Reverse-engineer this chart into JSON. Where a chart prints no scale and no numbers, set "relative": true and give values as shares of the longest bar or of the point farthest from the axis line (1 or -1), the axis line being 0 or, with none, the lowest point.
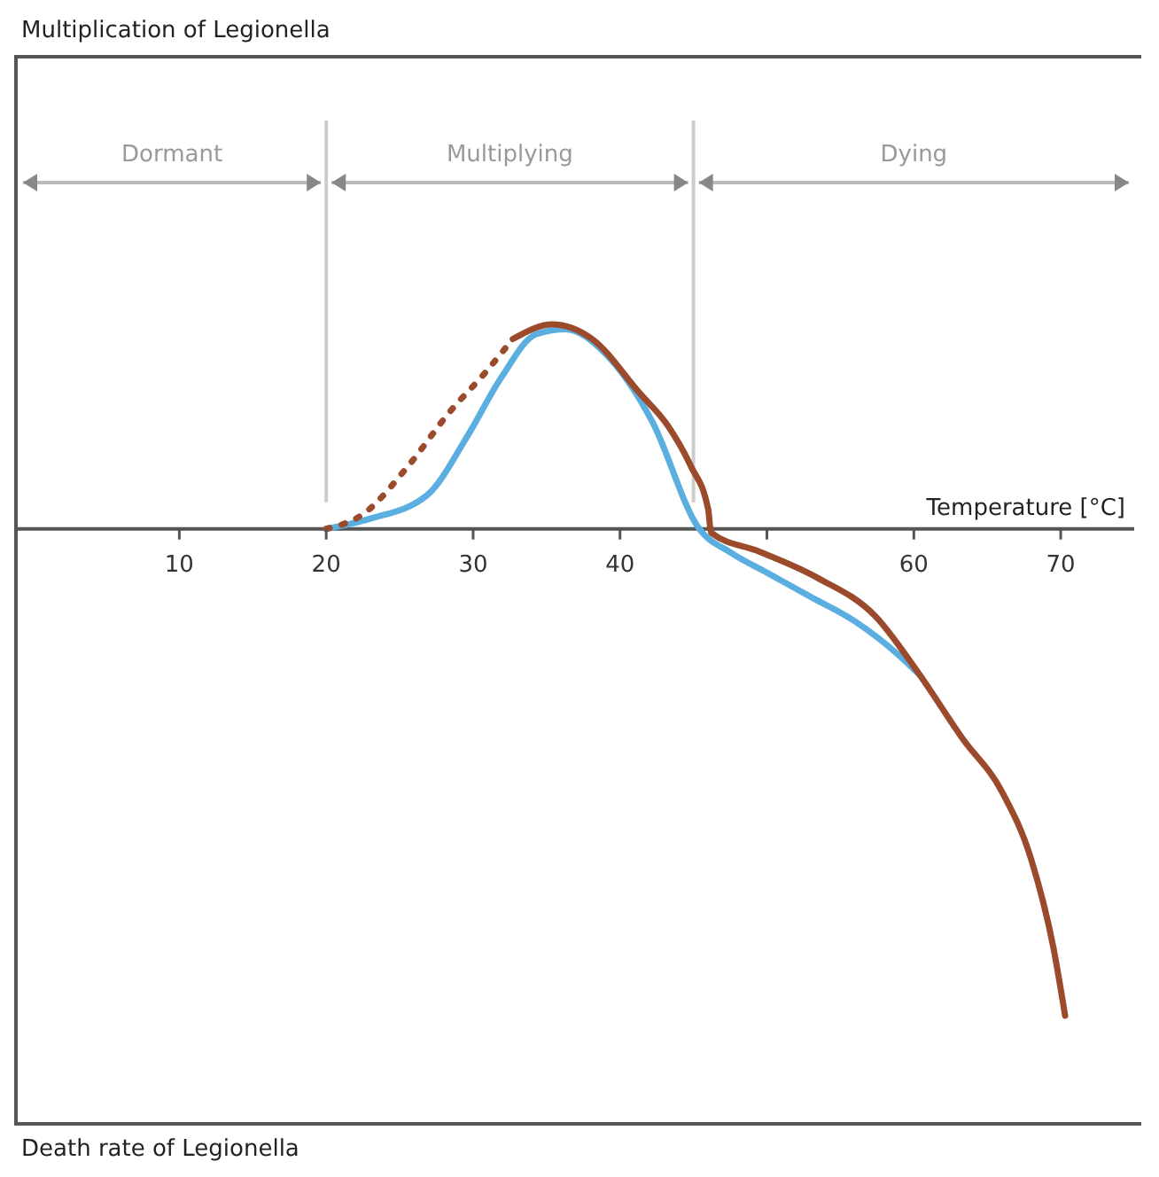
{
  "chart_data": {
    "type": "line",
    "title": "Multiplication of Legionella",
    "xlabel": "Temperature [°C]",
    "relative": true,
    "xlim": [
      -1,
      75
    ],
    "xticks": [
      10,
      20,
      30,
      40,
      {
        "value": 50,
        "label": null
      },
      60,
      70
    ],
    "annotations": [
      "Dormant",
      "Multiplying",
      "Dying",
      "Death rate of Legionella"
    ],
    "ref_lines": [
      {
        "axis": "x",
        "value": 20,
        "color": "#cccccc"
      },
      {
        "axis": "x",
        "value": 45,
        "color": "#cccccc"
      }
    ],
    "series": [
      {
        "color": "#5aaee0",
        "line_style": "solid",
        "x": [
          20,
          22.9,
          26.9,
          29.6,
          31.9,
          34.3,
          36.3,
          39,
          42.2,
          45.3,
          47.6,
          50,
          53,
          56,
          59,
          60.4
        ],
        "values": [
          0,
          0.02,
          0.07,
          0.19,
          0.31,
          0.4,
          0.41,
          0.36,
          0.22,
          0.004,
          -0.05,
          -0.09,
          -0.14,
          -0.19,
          -0.26,
          -0.3
        ]
      },
      {
        "color": "#9b4a2c",
        "line_style": "dotted",
        "x": [
          20,
          22.5,
          25.6,
          28.4,
          30.8,
          32.7
        ],
        "values": [
          0,
          0.03,
          0.13,
          0.24,
          0.32,
          0.39
        ]
      },
      {
        "color": "#9b4a2c",
        "line_style": "solid",
        "x": [
          32.7,
          35.4,
          38.1,
          41.3,
          43.3,
          44.8,
          46,
          46.2,
          49.5,
          53.4,
          57.4,
          60.4,
          63.3,
          66,
          68,
          69.5,
          70.3
        ],
        "values": [
          0.39,
          0.42,
          0.39,
          0.28,
          0.21,
          0.13,
          0.04,
          -0.008,
          -0.047,
          -0.1,
          -0.18,
          -0.3,
          -0.43,
          -0.54,
          -0.68,
          -0.86,
          -1
        ]
      }
    ]
  }
}
